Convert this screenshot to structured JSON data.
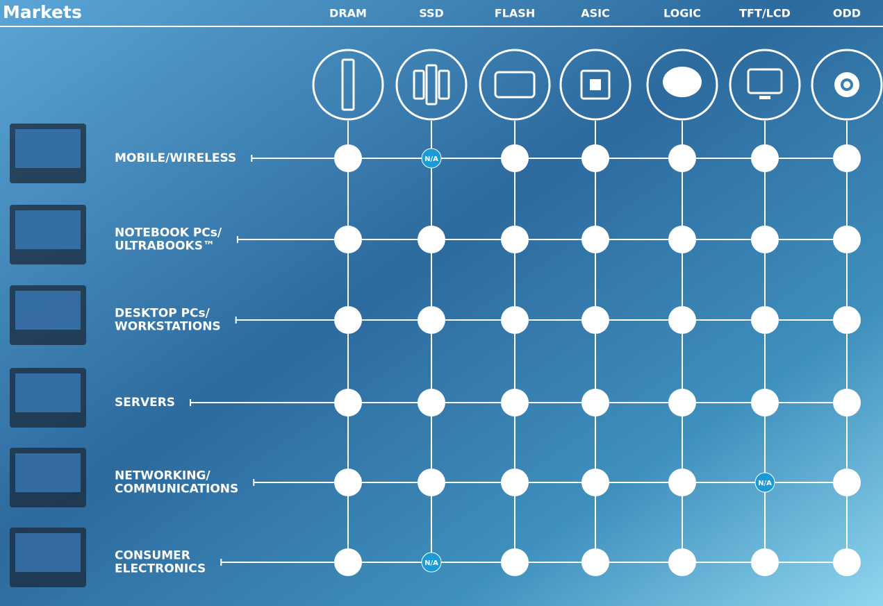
{
  "header": {
    "title": "Markets"
  },
  "columns": [
    "DRAM",
    "SSD",
    "FLASH",
    "ASIC",
    "LOGIC",
    "TFT/LCD",
    "ODD"
  ],
  "rows": [
    {
      "label": [
        "MOBILE/WIRELESS"
      ],
      "cells": [
        null,
        "N/A",
        null,
        null,
        null,
        null,
        null
      ]
    },
    {
      "label": [
        "NOTEBOOK PCs/",
        "ULTRABOOKS™"
      ],
      "cells": [
        null,
        null,
        null,
        null,
        null,
        null,
        null
      ]
    },
    {
      "label": [
        "DESKTOP PCs/",
        "WORKSTATIONS"
      ],
      "cells": [
        null,
        null,
        null,
        null,
        null,
        null,
        null
      ]
    },
    {
      "label": [
        "SERVERS"
      ],
      "cells": [
        null,
        null,
        null,
        null,
        null,
        null,
        null
      ]
    },
    {
      "label": [
        "NETWORKING/",
        "COMMUNICATIONS"
      ],
      "cells": [
        null,
        null,
        null,
        null,
        null,
        "N/A",
        null
      ]
    },
    {
      "label": [
        "CONSUMER",
        "ELECTRONICS"
      ],
      "cells": [
        null,
        "N/A",
        null,
        null,
        null,
        null,
        null
      ]
    }
  ]
}
